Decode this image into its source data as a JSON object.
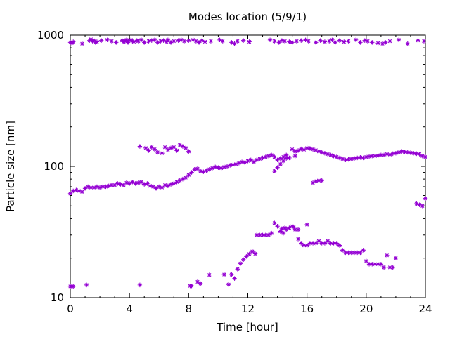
{
  "chart_data": {
    "type": "scatter",
    "title": "Modes location (5/9/1)",
    "xlabel": "Time [hour]",
    "ylabel": "Particle size [nm]",
    "xlim": [
      0,
      24
    ],
    "ylim": [
      10,
      1000
    ],
    "yscale": "log",
    "xticks": [
      0,
      4,
      8,
      12,
      16,
      20,
      24
    ],
    "yticks": [
      10,
      100,
      1000
    ],
    "grid": false,
    "legend": "none",
    "marker": "asterisk",
    "color": "#9400d3",
    "series": [
      {
        "x": [
          0.0,
          0.1,
          0.2,
          0.8,
          1.3,
          1.4,
          1.5,
          1.6,
          1.7,
          1.8,
          2.1,
          2.5,
          2.8,
          3.1,
          3.5,
          3.6,
          3.7,
          3.8,
          3.9,
          4.0,
          4.1,
          4.2,
          4.3,
          4.5,
          4.6,
          4.8,
          5.0,
          5.3,
          5.5,
          5.7,
          5.9,
          6.1,
          6.3,
          6.5,
          6.6,
          6.8,
          7.0,
          7.3,
          7.5,
          7.7,
          8.0,
          8.3,
          8.5,
          8.7,
          8.9,
          9.1,
          9.5,
          10.1,
          10.3,
          10.9,
          11.1,
          11.3,
          11.7,
          12.1,
          13.5,
          13.8,
          14.1,
          14.3,
          14.5,
          14.8,
          15.0,
          15.3,
          15.6,
          15.9,
          16.1,
          16.6,
          16.9,
          17.2,
          17.5,
          17.7,
          17.9,
          18.2,
          18.5,
          18.8,
          19.3,
          19.6,
          19.9,
          20.1,
          20.4,
          20.8,
          21.1,
          21.3,
          21.6,
          22.2,
          22.8,
          23.5,
          23.9
        ],
        "y": [
          880,
          870,
          890,
          860,
          910,
          930,
          900,
          910,
          880,
          890,
          910,
          920,
          900,
          880,
          910,
          890,
          900,
          920,
          880,
          910,
          920,
          900,
          890,
          910,
          900,
          920,
          880,
          900,
          910,
          920,
          880,
          900,
          910,
          890,
          920,
          880,
          900,
          910,
          920,
          900,
          910,
          920,
          900,
          880,
          910,
          890,
          900,
          920,
          900,
          880,
          860,
          900,
          910,
          890,
          920,
          900,
          880,
          910,
          900,
          890,
          880,
          900,
          910,
          920,
          900,
          880,
          910,
          890,
          900,
          920,
          880,
          910,
          890,
          900,
          920,
          880,
          910,
          900,
          880,
          870,
          860,
          880,
          900,
          920,
          860,
          910,
          900
        ]
      },
      {
        "x": [
          0.0,
          0.2,
          0.4,
          0.6,
          0.8,
          1.0,
          1.2,
          1.4,
          1.6,
          1.8,
          2.0,
          2.2,
          2.4,
          2.6,
          2.8,
          3.0,
          3.2,
          3.4,
          3.6,
          3.8,
          4.0,
          4.2,
          4.4,
          4.6,
          4.8,
          5.0,
          5.2,
          5.4,
          5.6,
          5.8,
          6.0,
          6.2,
          6.4,
          6.6,
          6.8,
          7.0,
          7.2,
          7.4,
          7.6,
          7.8,
          8.0,
          8.2,
          8.4,
          8.6,
          8.8,
          9.0,
          9.2,
          9.4,
          9.6,
          9.8,
          10.0,
          10.2,
          10.4,
          10.6,
          10.8,
          11.0,
          11.2,
          11.4,
          11.6,
          11.8,
          12.0,
          12.2,
          12.4,
          12.6,
          12.8,
          13.0,
          13.2,
          13.4,
          13.6,
          13.8,
          14.0,
          14.2,
          14.4,
          14.6,
          14.8,
          15.0,
          15.2,
          15.4,
          15.6,
          15.8,
          16.0,
          16.2,
          16.4,
          16.6,
          16.8,
          17.0,
          17.2,
          17.4,
          17.6,
          17.8,
          18.0,
          18.2,
          18.4,
          18.6,
          18.8,
          19.0,
          19.2,
          19.4,
          19.6,
          19.8,
          20.0,
          20.2,
          20.4,
          20.6,
          20.8,
          21.0,
          21.2,
          21.4,
          21.6,
          21.8,
          22.0,
          22.2,
          22.4,
          22.6,
          22.8,
          23.0,
          23.2,
          23.4,
          23.6,
          23.8,
          24.0
        ],
        "y": [
          62,
          65,
          66,
          65,
          64,
          68,
          70,
          69,
          69,
          70,
          69,
          70,
          70,
          71,
          72,
          72,
          74,
          73,
          72,
          75,
          74,
          76,
          74,
          75,
          76,
          73,
          74,
          71,
          70,
          68,
          70,
          69,
          72,
          71,
          73,
          74,
          76,
          78,
          80,
          82,
          86,
          90,
          95,
          96,
          92,
          91,
          93,
          95,
          97,
          99,
          98,
          97,
          99,
          100,
          102,
          103,
          104,
          106,
          108,
          107,
          110,
          112,
          108,
          112,
          114,
          116,
          118,
          120,
          122,
          118,
          112,
          115,
          118,
          122,
          116,
          135,
          130,
          132,
          136,
          134,
          138,
          137,
          135,
          133,
          130,
          128,
          126,
          124,
          122,
          120,
          118,
          116,
          114,
          112,
          113,
          114,
          115,
          116,
          117,
          116,
          118,
          119,
          120,
          120,
          121,
          122,
          122,
          124,
          123,
          125,
          126,
          128,
          130,
          129,
          128,
          127,
          126,
          125,
          124,
          120,
          118
        ]
      },
      {
        "x": [
          4.7,
          5.1,
          5.3,
          5.5,
          5.7,
          5.9,
          6.2,
          6.4,
          6.6,
          6.8,
          7.0,
          7.2,
          7.4,
          7.6,
          7.8,
          8.0,
          13.8,
          14.0,
          14.2,
          14.4,
          14.6,
          15.2,
          16.4,
          16.6,
          16.8,
          17.0,
          23.4,
          23.6,
          23.8,
          24.0
        ],
        "y": [
          142,
          138,
          132,
          140,
          135,
          128,
          126,
          140,
          134,
          138,
          140,
          132,
          146,
          142,
          138,
          130,
          92,
          98,
          104,
          110,
          115,
          120,
          75,
          77,
          78,
          78,
          52,
          51,
          50,
          57
        ]
      },
      {
        "x": [
          12.6,
          12.8,
          13.0,
          13.2,
          13.4,
          13.6,
          13.8,
          14.0,
          14.2,
          14.4,
          14.6,
          14.8,
          15.0,
          15.2,
          15.4,
          15.6,
          15.8,
          16.0,
          16.2,
          16.4,
          16.6,
          16.8,
          17.0,
          17.2,
          17.4,
          17.6,
          17.8,
          18.0,
          18.2,
          18.4,
          18.6,
          18.8,
          19.0,
          19.2,
          19.4,
          19.6,
          19.8,
          20.0,
          20.2,
          20.4,
          20.6,
          20.8,
          21.0,
          21.2,
          21.4,
          21.6,
          21.8,
          22.0
        ],
        "y": [
          30,
          30,
          30,
          30,
          30,
          31,
          37,
          35,
          32,
          31,
          33,
          34,
          35,
          33,
          28,
          26,
          25,
          25,
          26,
          26,
          26,
          27,
          26,
          26,
          27,
          26,
          26,
          26,
          25,
          23,
          22,
          22,
          22,
          22,
          22,
          22,
          23,
          19,
          18,
          18,
          18,
          18,
          18,
          17,
          21,
          17,
          17,
          20
        ]
      },
      {
        "x": [
          0.0,
          0.1,
          0.2,
          1.1,
          4.7,
          8.1,
          8.2,
          8.6,
          8.8,
          9.4,
          10.4,
          10.7,
          10.9,
          11.1,
          11.3,
          11.5,
          11.7,
          11.9,
          12.1,
          12.3,
          12.5,
          14.3,
          14.5,
          15.1,
          15.4,
          16.0
        ],
        "y": [
          12.2,
          12.2,
          12.2,
          12.5,
          12.5,
          12.3,
          12.3,
          13.2,
          12.8,
          14.9,
          15.0,
          12.6,
          15.0,
          14.0,
          16.5,
          18.2,
          19.5,
          20.6,
          21.5,
          22.5,
          21.6,
          33.5,
          34.0,
          34.5,
          33.0,
          36.0
        ]
      }
    ]
  }
}
